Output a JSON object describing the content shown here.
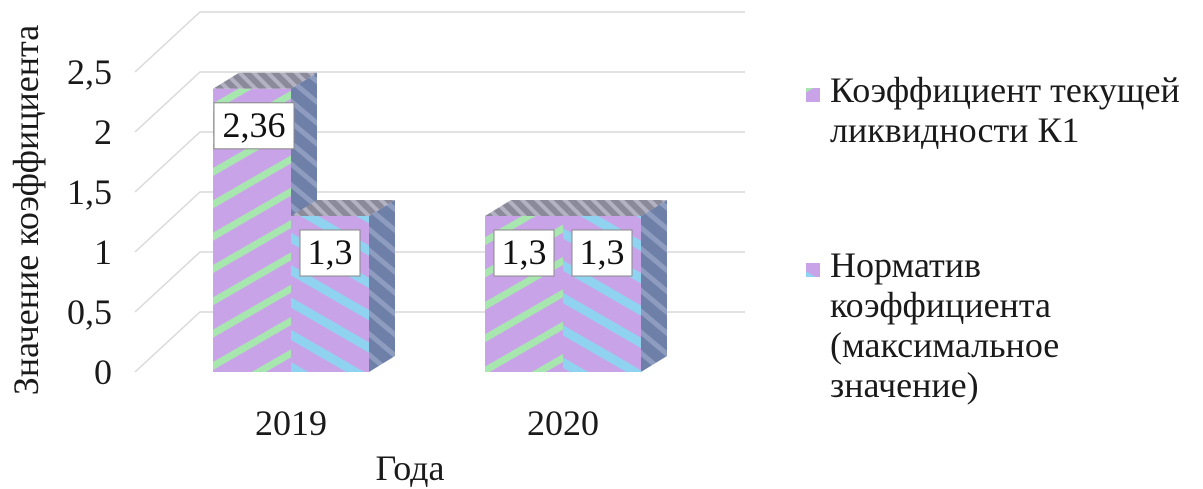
{
  "chart_data": {
    "type": "bar",
    "categories": [
      "2019",
      "2020"
    ],
    "series": [
      {
        "name": "Коэффициент текущей ликвидности К1",
        "values": [
          2.36,
          1.3
        ],
        "color": "#c9a3e8",
        "stripe_color": "#a8e6b0"
      },
      {
        "name": "Норматив коэффициента (максимальное значение)",
        "values": [
          1.3,
          1.3
        ],
        "color": "#c9a3e8",
        "stripe_color": "#8fd3f0"
      }
    ],
    "data_labels": [
      [
        "2,36",
        "1,3"
      ],
      [
        "1,3",
        "1,3"
      ]
    ],
    "y_ticks": [
      "0",
      "0,5",
      "1",
      "1,5",
      "2",
      "2,5"
    ],
    "ylim": [
      0,
      2.5
    ],
    "ylabel": "Значение коэффициента",
    "xlabel": "Года",
    "legend": {
      "position": "right",
      "entries": [
        [
          "Коэффициент текущей",
          "ликвидности К1"
        ],
        [
          "Норматив",
          "коэффициента",
          "(максимальное",
          "значение)"
        ]
      ]
    },
    "grid": true
  }
}
